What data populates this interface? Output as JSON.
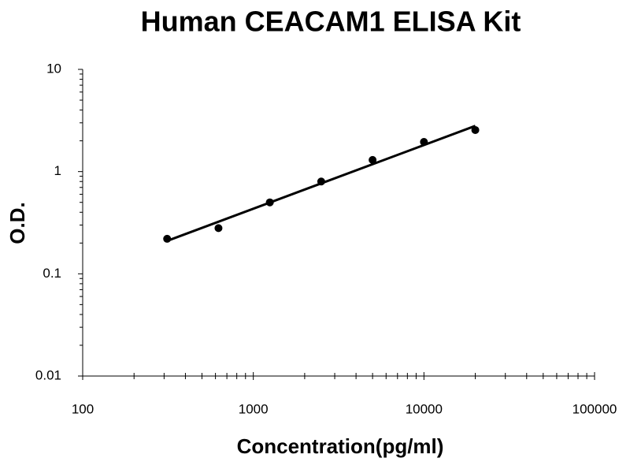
{
  "chart_data": {
    "type": "scatter",
    "title": "Human CEACAM1 ELISA Kit",
    "x_label": "Concentration(pg/ml)",
    "y_label": "O.D.",
    "x": [
      312.5,
      625,
      1250,
      2500,
      5000,
      10000,
      20000
    ],
    "values": [
      0.22,
      0.28,
      0.5,
      0.8,
      1.3,
      1.95,
      2.55
    ],
    "color": "#000000",
    "trendline": {
      "x": [
        312.5,
        20000
      ],
      "values": [
        0.21,
        2.8
      ]
    },
    "xlim": [
      100,
      100000
    ],
    "ylim": [
      0.01,
      10
    ],
    "xticks": [
      100,
      1000,
      10000,
      100000
    ],
    "yticks": [
      0.01,
      0.1,
      1,
      10
    ],
    "xlog": true,
    "ylog": true,
    "grid": false
  }
}
